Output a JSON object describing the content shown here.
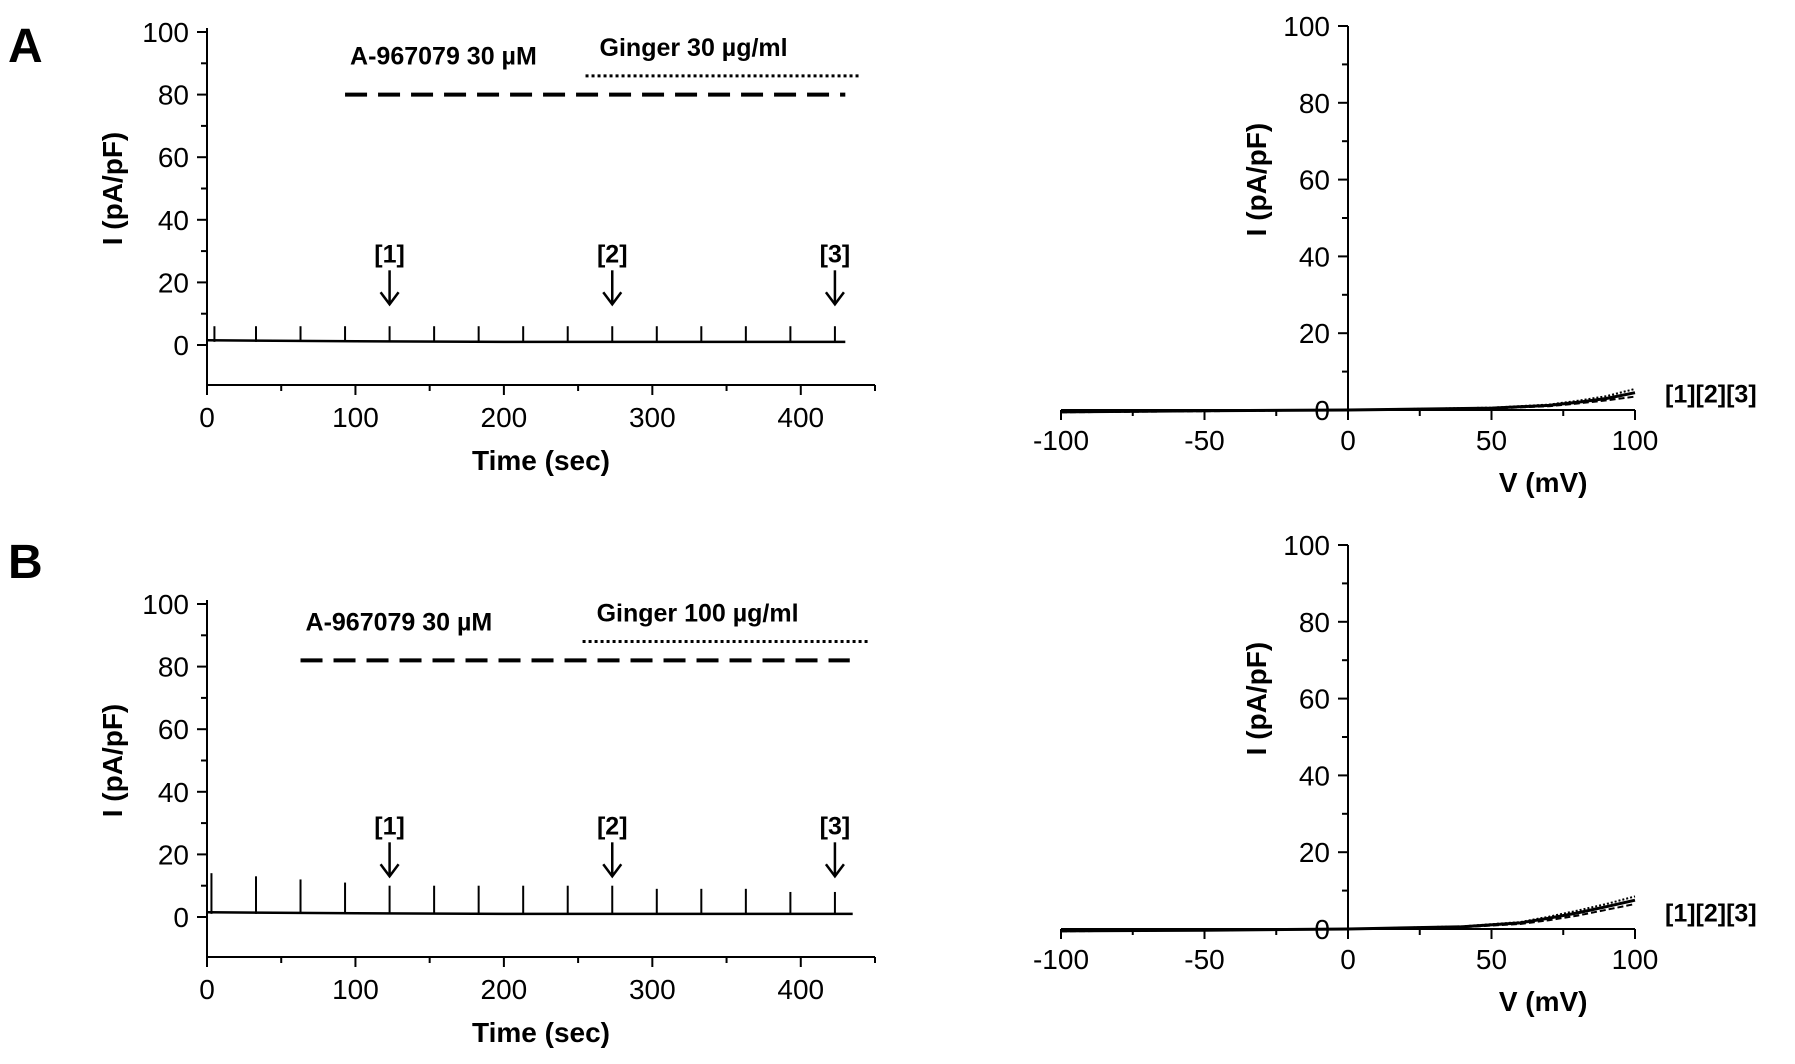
{
  "figure": {
    "panels": [
      "A",
      "B"
    ]
  },
  "chart_data": [
    {
      "id": "A-time",
      "type": "line",
      "panel": "A",
      "title": "",
      "xlabel": "Time (sec)",
      "ylabel": "I (pA/pF)",
      "xlim": [
        0,
        450
      ],
      "ylim": [
        0,
        100
      ],
      "xticks": [
        0,
        100,
        200,
        300,
        400
      ],
      "yticks": [
        0,
        20,
        40,
        60,
        80,
        100
      ],
      "grid": false,
      "series": [
        {
          "x": [
            0,
            100,
            200,
            300,
            400,
            430
          ],
          "y": [
            1.5,
            1.2,
            1.0,
            1.0,
            1.0,
            1.0
          ],
          "spikes_x": [
            5,
            33,
            63,
            93,
            123,
            153,
            183,
            213,
            243,
            273,
            303,
            333,
            363,
            393,
            423
          ],
          "spike_height": 5
        }
      ],
      "bars": [
        {
          "label": "A-967079 30 µM",
          "start": 93,
          "end": 430,
          "y": 80,
          "style": "dashed"
        },
        {
          "label": "Ginger 30 µg/ml",
          "start": 255,
          "end": 440,
          "y": 86,
          "style": "dotted"
        }
      ],
      "markers": [
        {
          "label": "[1]",
          "x": 123
        },
        {
          "label": "[2]",
          "x": 273
        },
        {
          "label": "[3]",
          "x": 423
        }
      ]
    },
    {
      "id": "A-iv",
      "type": "line",
      "panel": "A",
      "title": "",
      "xlabel": "V (mV)",
      "ylabel": "I (pA/pF)",
      "xlim": [
        -100,
        100
      ],
      "ylim": [
        0,
        100
      ],
      "xticks": [
        -100,
        -50,
        0,
        50,
        100
      ],
      "yticks": [
        0,
        20,
        40,
        60,
        80,
        100
      ],
      "grid": false,
      "series_label": "[1][2][3]",
      "series": [
        {
          "x": [
            -100,
            -50,
            0,
            50,
            70,
            80,
            90,
            100
          ],
          "y": [
            -0.5,
            -0.2,
            0.0,
            0.5,
            1.2,
            2.0,
            3.0,
            4.5
          ]
        },
        {
          "x": [
            -100,
            -50,
            0,
            50,
            70,
            80,
            90,
            100
          ],
          "y": [
            -0.6,
            -0.3,
            0.0,
            0.4,
            1.0,
            1.7,
            2.5,
            3.5
          ]
        },
        {
          "x": [
            -100,
            -50,
            0,
            50,
            70,
            80,
            90,
            100
          ],
          "y": [
            -0.4,
            -0.2,
            0.0,
            0.6,
            1.4,
            2.4,
            3.6,
            5.5
          ]
        }
      ]
    },
    {
      "id": "B-time",
      "type": "line",
      "panel": "B",
      "title": "",
      "xlabel": "Time (sec)",
      "ylabel": "I (pA/pF)",
      "xlim": [
        0,
        450
      ],
      "ylim": [
        0,
        100
      ],
      "xticks": [
        0,
        100,
        200,
        300,
        400
      ],
      "yticks": [
        0,
        20,
        40,
        60,
        80,
        100
      ],
      "grid": false,
      "series": [
        {
          "x": [
            0,
            100,
            200,
            300,
            400,
            435
          ],
          "y": [
            1.5,
            1.2,
            1.0,
            1.0,
            1.0,
            1.0
          ],
          "spikes_x": [
            3,
            33,
            63,
            93,
            123,
            153,
            183,
            213,
            243,
            273,
            303,
            333,
            363,
            393,
            423
          ],
          "spike_heights": [
            13,
            12,
            11,
            10,
            9,
            9,
            9,
            9,
            9,
            9,
            8,
            8,
            8,
            7,
            7
          ]
        }
      ],
      "bars": [
        {
          "label": "A-967079  30 µM",
          "start": 63,
          "end": 433,
          "y": 82,
          "style": "dashed"
        },
        {
          "label": "Ginger 100 µg/ml",
          "start": 253,
          "end": 445,
          "y": 88,
          "style": "dotted"
        }
      ],
      "markers": [
        {
          "label": "[1]",
          "x": 123
        },
        {
          "label": "[2]",
          "x": 273
        },
        {
          "label": "[3]",
          "x": 423
        }
      ]
    },
    {
      "id": "B-iv",
      "type": "line",
      "panel": "B",
      "title": "",
      "xlabel": "V (mV)",
      "ylabel": "I (pA/pF)",
      "xlim": [
        -100,
        100
      ],
      "ylim": [
        0,
        100
      ],
      "xticks": [
        -100,
        -50,
        0,
        50,
        100
      ],
      "yticks": [
        0,
        20,
        40,
        60,
        80,
        100
      ],
      "grid": false,
      "series_label": "[1][2][3]",
      "series": [
        {
          "x": [
            -100,
            -50,
            0,
            40,
            60,
            70,
            80,
            90,
            100
          ],
          "y": [
            -0.5,
            -0.3,
            0.0,
            0.6,
            1.6,
            2.8,
            4.2,
            5.8,
            7.5
          ]
        },
        {
          "x": [
            -100,
            -50,
            0,
            40,
            60,
            70,
            80,
            90,
            100
          ],
          "y": [
            -0.6,
            -0.3,
            0.0,
            0.5,
            1.3,
            2.3,
            3.5,
            5.0,
            6.5
          ]
        },
        {
          "x": [
            -100,
            -50,
            0,
            40,
            60,
            70,
            80,
            90,
            100
          ],
          "y": [
            -0.4,
            -0.2,
            0.0,
            0.7,
            1.8,
            3.2,
            4.8,
            6.5,
            8.5
          ]
        }
      ]
    }
  ]
}
